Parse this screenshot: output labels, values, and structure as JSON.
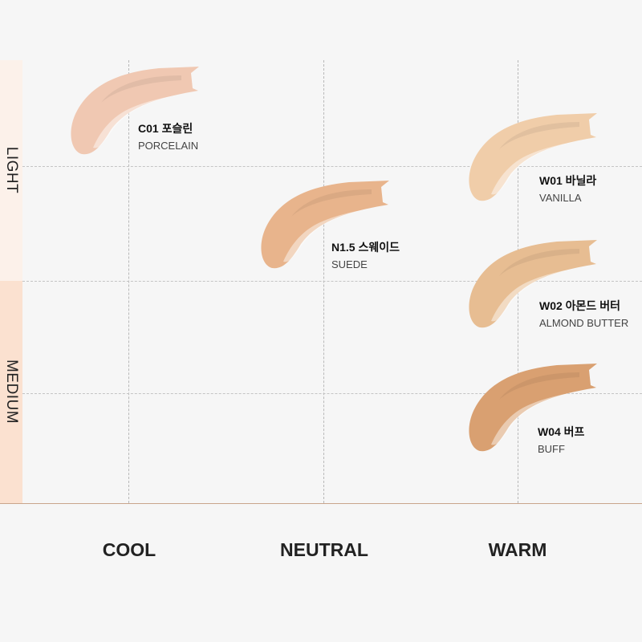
{
  "y_axis": {
    "labels": [
      "LIGHT",
      "MEDIUM"
    ],
    "band_colors": [
      "#fcf1ea",
      "#fbe1d0"
    ]
  },
  "x_axis": {
    "labels": [
      "COOL",
      "NEUTRAL",
      "WARM"
    ]
  },
  "shades": [
    {
      "code_name": "C01 포슬린",
      "english": "PORCELAIN",
      "tone": "COOL",
      "depth": "LIGHT",
      "color": "#f0c8b2"
    },
    {
      "code_name": "N1.5 스웨이드",
      "english": "SUEDE",
      "tone": "NEUTRAL",
      "depth": "LIGHT",
      "color": "#e8b48c"
    },
    {
      "code_name": "W01 바닐라",
      "english": "VANILLA",
      "tone": "WARM",
      "depth": "LIGHT",
      "color": "#f0cda9"
    },
    {
      "code_name": "W02 아몬드 버터",
      "english": "ALMOND BUTTER",
      "tone": "WARM",
      "depth": "MEDIUM",
      "color": "#e7bd92"
    },
    {
      "code_name": "W04 버프",
      "english": "BUFF",
      "tone": "WARM",
      "depth": "MEDIUM",
      "color": "#d9a071"
    }
  ]
}
